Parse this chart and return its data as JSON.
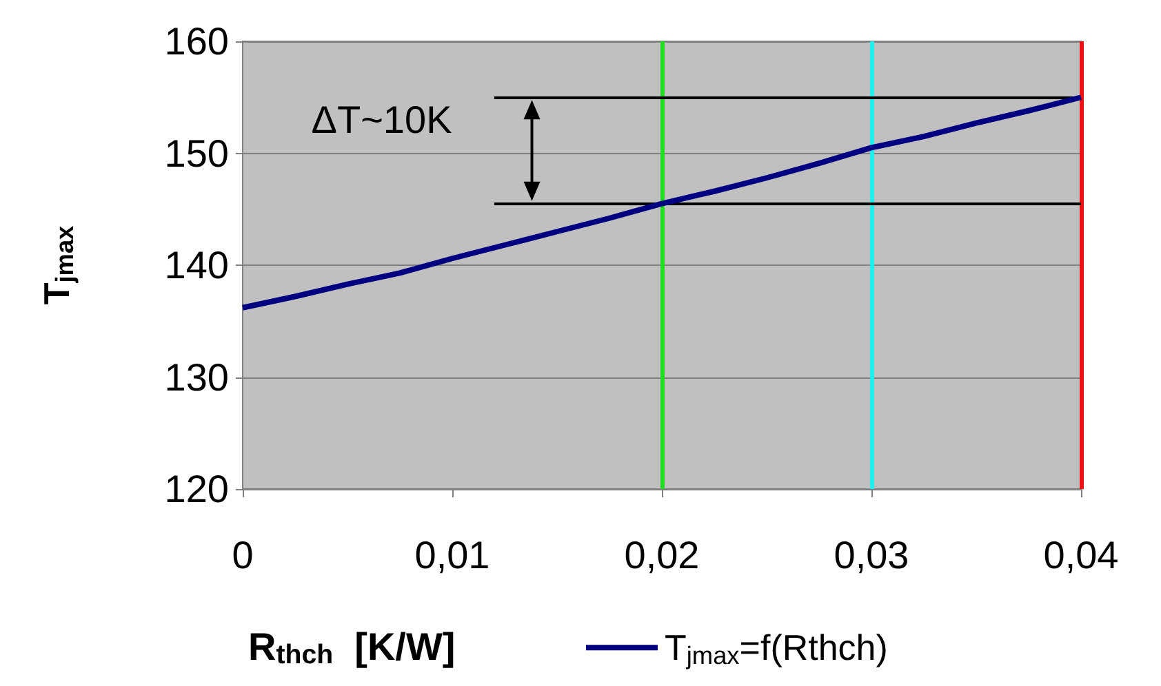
{
  "chart_data": {
    "type": "line",
    "xlabel": "R$_{thch}$  [K/W]",
    "ylabel": "T$_{jmax}$",
    "x": [
      0,
      0.0025,
      0.005,
      0.0075,
      0.01,
      0.0125,
      0.015,
      0.0175,
      0.02,
      0.0225,
      0.025,
      0.0275,
      0.03,
      0.0325,
      0.035,
      0.0375,
      0.04
    ],
    "series": [
      {
        "name": "T$_{jmax}$=f(Rthch)",
        "color": "#000080",
        "values": [
          136.2,
          137.2,
          138.3,
          139.3,
          140.6,
          141.8,
          143,
          144.2,
          145.5,
          146.6,
          147.8,
          149.1,
          150.5,
          151.5,
          152.7,
          153.8,
          155
        ]
      }
    ],
    "xlim": [
      0,
      0.04
    ],
    "xticks": [
      {
        "value": 0,
        "label": "0"
      },
      {
        "value": 0.01,
        "label": "0,01"
      },
      {
        "value": 0.02,
        "label": "0,02"
      },
      {
        "value": 0.03,
        "label": "0,03"
      },
      {
        "value": 0.04,
        "label": "0,04"
      }
    ],
    "ylim": [
      120,
      160
    ],
    "yticks": [
      120,
      130,
      140,
      150,
      160
    ],
    "ref_lines": [
      {
        "axis": "x",
        "value": 0.02,
        "color": "#22dd22"
      },
      {
        "axis": "x",
        "value": 0.03,
        "color": "#22eeee"
      },
      {
        "axis": "x",
        "value": 0.04,
        "color": "#ee1111"
      },
      {
        "axis": "y",
        "value": 155,
        "color": "#000000"
      },
      {
        "axis": "y",
        "value": 145.5,
        "color": "#000000"
      }
    ],
    "annotations": [
      "ΔT~10K"
    ],
    "grid": "y",
    "legend": "bottom",
    "marker": "none",
    "line_style": "solid"
  }
}
